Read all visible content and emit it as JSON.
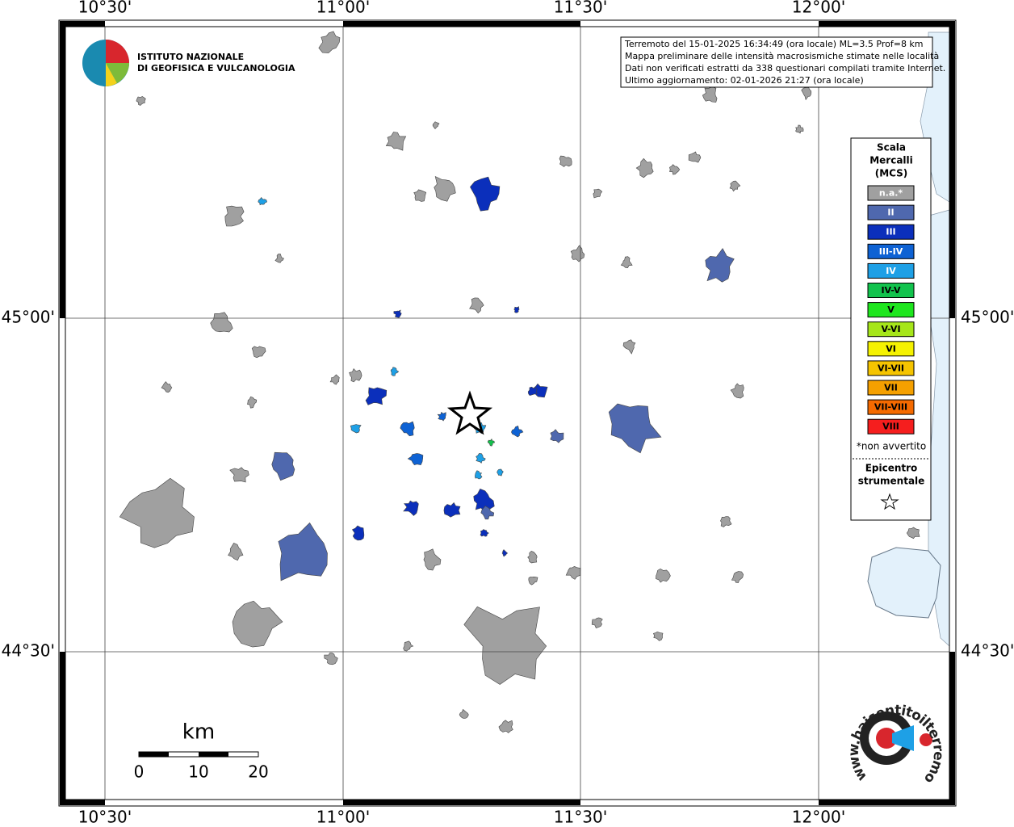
{
  "map": {
    "top_labels": [
      "10°30'",
      "11°00'",
      "11°30'",
      "12°00'"
    ],
    "bottom_labels": [
      "10°30'",
      "11°00'",
      "11°30'",
      "12°00'"
    ],
    "left_labels": [
      "45°00'",
      "44°30'"
    ],
    "right_labels": [
      "45°00'",
      "44°30'"
    ],
    "info": [
      "Terremoto del 15-01-2025 16:34:49 (ora locale) ML=3.5 Prof=8 km",
      "Mappa preliminare delle intensità macrosismiche stimate nelle località",
      "Dati non verificati estratti da 338 questionari compilati tramite Internet.",
      "Ultimo aggiornamento: 02-01-2026 21:27 (ora locale)"
    ],
    "institute": [
      "ISTITUTO NAZIONALE",
      "DI GEOFISICA E VULCANOLOGIA"
    ],
    "scale": {
      "unit": "km",
      "labels": [
        "0",
        "10",
        "20"
      ]
    },
    "site": "www.haisentitoilterremoto.it"
  },
  "legend": {
    "title": [
      "Scala",
      "Mercalli",
      "(MCS)"
    ],
    "items": [
      {
        "label": "n.a.*",
        "color": "#a0a0a0"
      },
      {
        "label": "II",
        "color": "#4f68ae"
      },
      {
        "label": "III",
        "color": "#0b2fbb"
      },
      {
        "label": "III-IV",
        "color": "#0e62d4"
      },
      {
        "label": "IV",
        "color": "#1ea0e6"
      },
      {
        "label": "IV-V",
        "color": "#12c34d"
      },
      {
        "label": "V",
        "color": "#1ee61e"
      },
      {
        "label": "V-VI",
        "color": "#a6e61a"
      },
      {
        "label": "VI",
        "color": "#f5f200"
      },
      {
        "label": "VI-VII",
        "color": "#f5c400"
      },
      {
        "label": "VII",
        "color": "#f5a000"
      },
      {
        "label": "VII-VIII",
        "color": "#f56a00"
      },
      {
        "label": "VIII",
        "color": "#f51e1e"
      }
    ],
    "note": "*non avvertito",
    "epicentre": [
      "Epicentro",
      "strumentale"
    ]
  }
}
